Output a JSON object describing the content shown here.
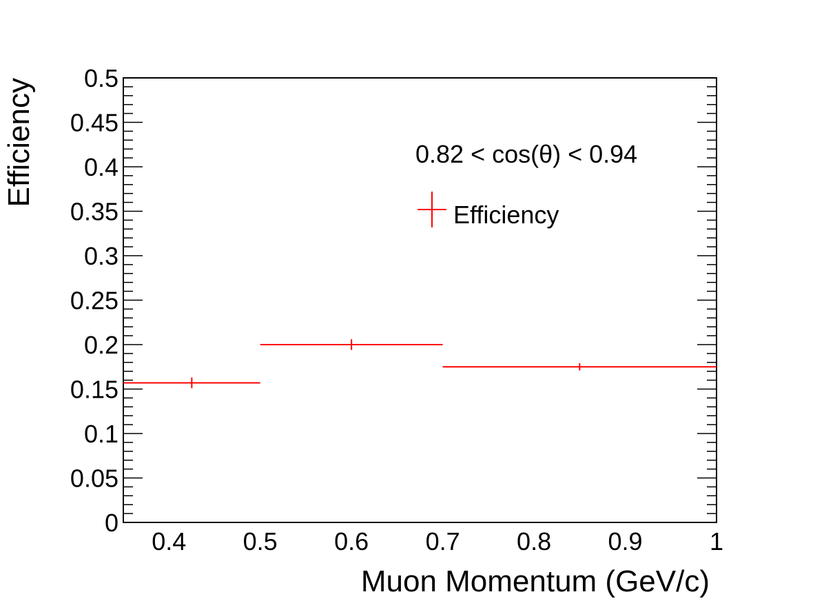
{
  "chart_data": {
    "type": "scatter",
    "title": "",
    "xlabel": "Muon Momentum (GeV/c)",
    "ylabel": "Efficiency",
    "xlim": [
      0.35,
      1.0
    ],
    "ylim": [
      0,
      0.5
    ],
    "xticks": [
      {
        "value": 0.4,
        "label": "0.4"
      },
      {
        "value": 0.5,
        "label": "0.5"
      },
      {
        "value": 0.6,
        "label": "0.6"
      },
      {
        "value": 0.7,
        "label": "0.7"
      },
      {
        "value": 0.8,
        "label": "0.8"
      },
      {
        "value": 0.9,
        "label": "0.9"
      },
      {
        "value": 1.0,
        "label": "1"
      }
    ],
    "yticks": [
      {
        "value": 0,
        "label": "0"
      },
      {
        "value": 0.05,
        "label": "0.05"
      },
      {
        "value": 0.1,
        "label": "0.1"
      },
      {
        "value": 0.15,
        "label": "0.15"
      },
      {
        "value": 0.2,
        "label": "0.2"
      },
      {
        "value": 0.25,
        "label": "0.25"
      },
      {
        "value": 0.3,
        "label": "0.3"
      },
      {
        "value": 0.35,
        "label": "0.35"
      },
      {
        "value": 0.4,
        "label": "0.4"
      },
      {
        "value": 0.45,
        "label": "0.45"
      },
      {
        "value": 0.5,
        "label": "0.5"
      }
    ],
    "annotation": "0.82 < cos(θ) < 0.94",
    "legend_position": "top-right",
    "series": [
      {
        "name": "Efficiency",
        "color": "#ff0000",
        "points": [
          {
            "x": 0.425,
            "xlow": 0.35,
            "xhigh": 0.5,
            "y": 0.157,
            "yerr": 0.006
          },
          {
            "x": 0.6,
            "xlow": 0.5,
            "xhigh": 0.7,
            "y": 0.2,
            "yerr": 0.006
          },
          {
            "x": 0.85,
            "xlow": 0.7,
            "xhigh": 1.0,
            "y": 0.175,
            "yerr": 0.004
          }
        ]
      }
    ]
  }
}
